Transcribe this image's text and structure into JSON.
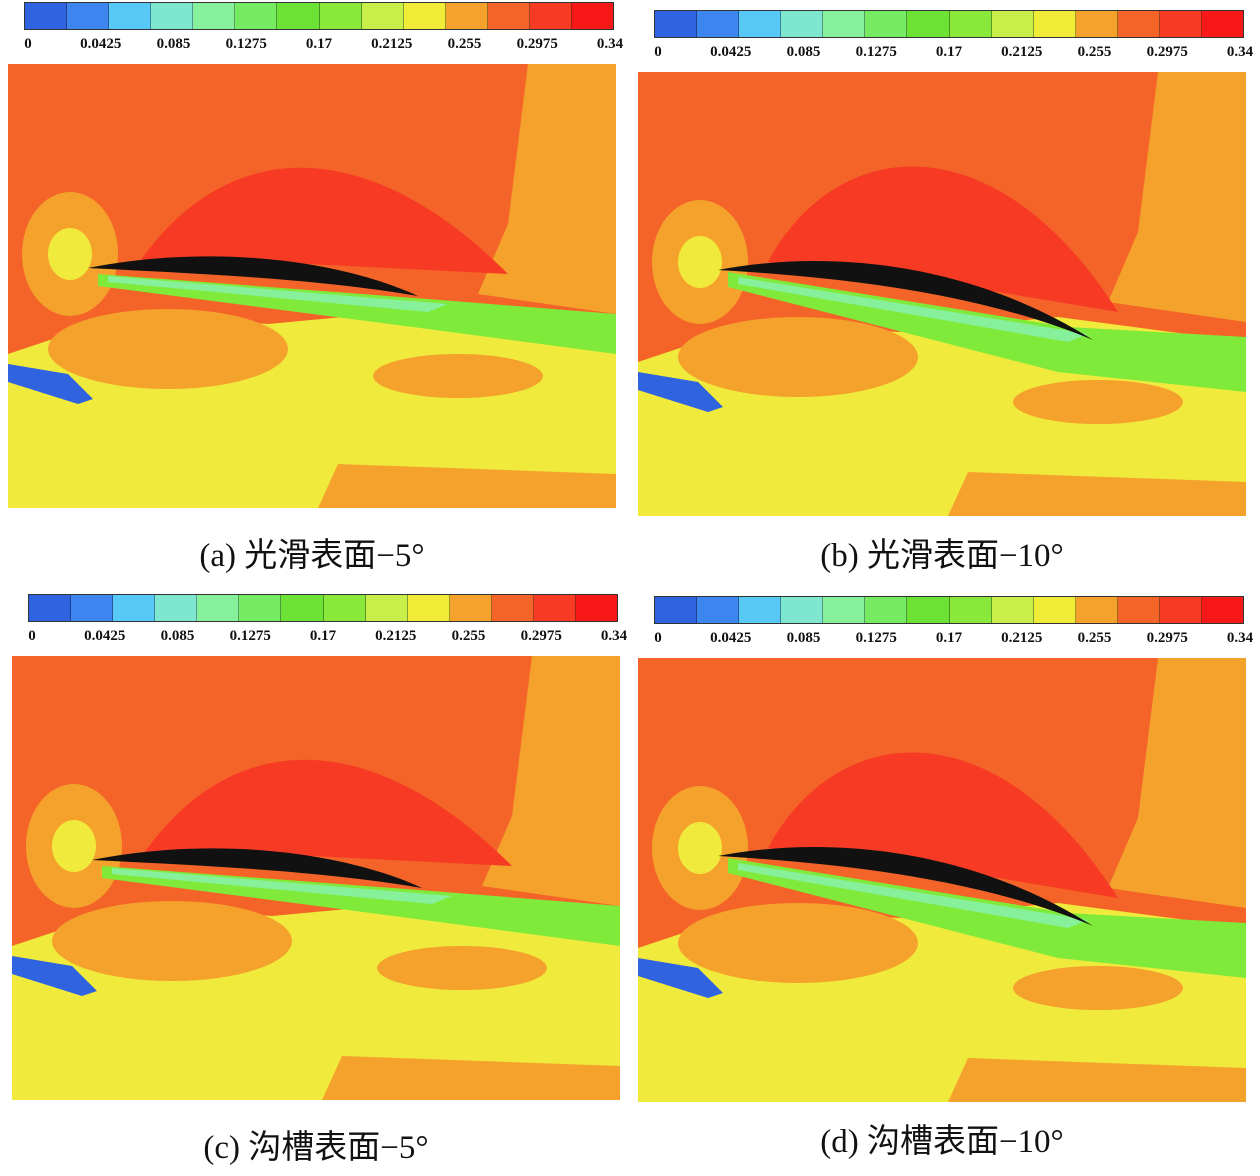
{
  "colorbar": {
    "ticks": [
      "0",
      "0.0425",
      "0.085",
      "0.1275",
      "0.17",
      "0.2125",
      "0.255",
      "0.2975",
      "0.34"
    ],
    "colors": [
      "#2f63e0",
      "#3d86f0",
      "#58c8f4",
      "#7fe6d0",
      "#86f09a",
      "#76ea60",
      "#6ce234",
      "#8ae83a",
      "#c9ee4a",
      "#f1ec38",
      "#f4a22c",
      "#f46428",
      "#f63a24",
      "#f81818"
    ]
  },
  "field_colors": {
    "far_field": "#f0ea3c",
    "upper": "#f46428",
    "peak": "#f63a24",
    "right_edge": "#f4a22c",
    "wake": "#7fea3a",
    "wake_core": "#86f09a",
    "blue": "#2f63e0",
    "airfoil": "#111111"
  },
  "panels": [
    {
      "caption": "(a) 光滑表面−5°"
    },
    {
      "caption": "(b) 光滑表面−10°"
    },
    {
      "caption": "(c) 沟槽表面−5°"
    },
    {
      "caption": "(d) 沟槽表面−10°"
    }
  ]
}
